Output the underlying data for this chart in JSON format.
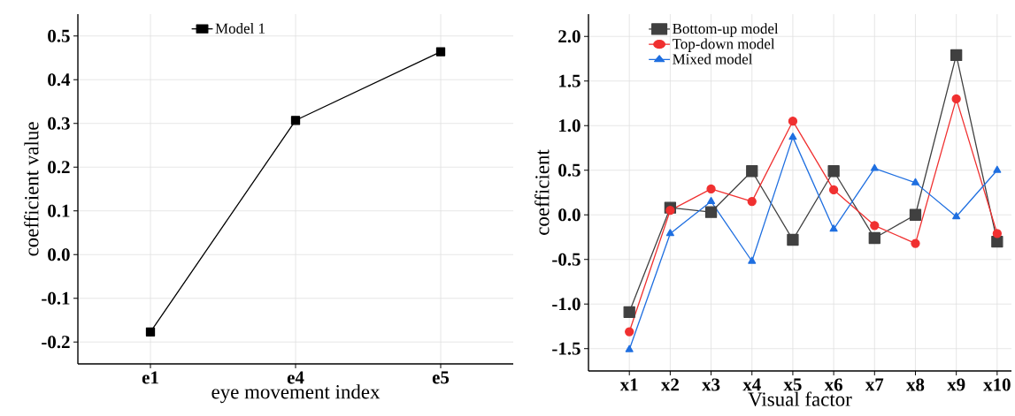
{
  "chart_data": [
    {
      "type": "line",
      "xlabel": "eye movement index",
      "ylabel": "coefficient value",
      "categories": [
        "e1",
        "e4",
        "e5"
      ],
      "series": [
        {
          "name": "Model 1",
          "color": "#000000",
          "marker": "square",
          "values": [
            -0.177,
            0.307,
            0.464
          ]
        }
      ],
      "ylim": [
        -0.25,
        0.55
      ],
      "yticks": [
        -0.2,
        -0.1,
        {
          "value": 0,
          "label": "0.0"
        },
        0.1,
        0.2,
        0.3,
        0.4,
        0.5
      ],
      "grid": true,
      "legend": "top left"
    },
    {
      "type": "line",
      "xlabel": "Visual factor",
      "ylabel": "coefficient",
      "categories": [
        "x1",
        "x2",
        "x3",
        "x4",
        "x5",
        "x6",
        "x7",
        "x8",
        "x9",
        "x10"
      ],
      "series": [
        {
          "name": "Bottom-up model",
          "color": "#404040",
          "marker": "square",
          "values": [
            -1.09,
            0.08,
            0.03,
            0.49,
            -0.28,
            0.49,
            -0.26,
            0.0,
            1.79,
            -0.3
          ]
        },
        {
          "name": "Top-down model",
          "color": "#f03030",
          "marker": "circle",
          "values": [
            -1.31,
            0.05,
            0.29,
            0.15,
            1.05,
            0.28,
            -0.12,
            -0.32,
            1.3,
            -0.21
          ]
        },
        {
          "name": "Mixed model",
          "color": "#1f6fe0",
          "marker": "triangle",
          "values": [
            -1.51,
            -0.21,
            0.15,
            -0.52,
            0.87,
            -0.16,
            0.52,
            0.36,
            -0.02,
            0.5
          ]
        }
      ],
      "ylim": [
        -1.75,
        2.25
      ],
      "yticks": [
        -1.5,
        {
          "value": -1,
          "label": "-1.0"
        },
        -0.5,
        {
          "value": 0,
          "label": "0.0"
        },
        0.5,
        {
          "value": 1,
          "label": "1.0"
        },
        1.5,
        {
          "value": 2,
          "label": "2.0"
        }
      ],
      "grid": true,
      "legend": "top left"
    }
  ]
}
